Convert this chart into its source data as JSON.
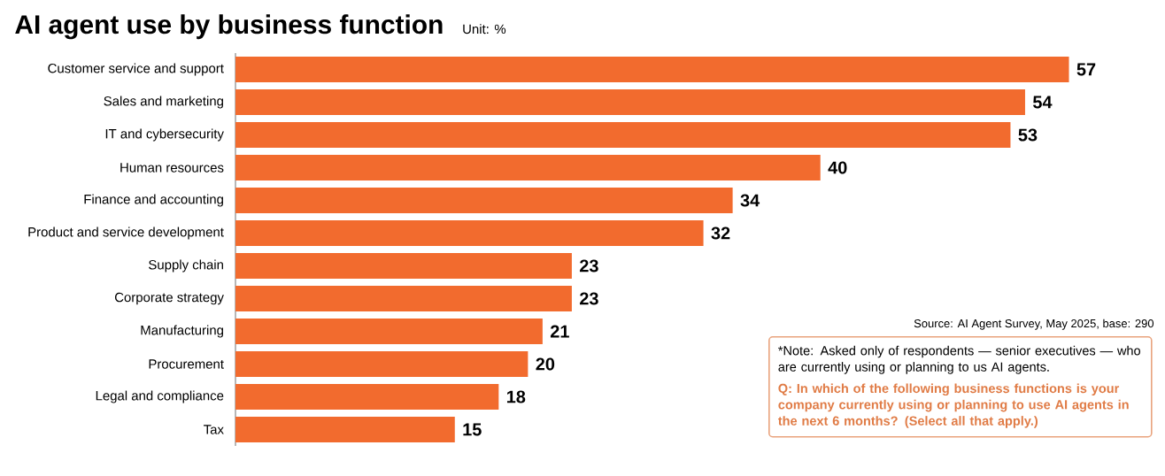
{
  "chart_data": {
    "type": "bar",
    "orientation": "horizontal",
    "title": "AI agent use by business function",
    "subtitle": "Unit: %",
    "categories": [
      "Customer service and support",
      "Sales and marketing",
      "IT and cybersecurity",
      "Human resources",
      "Finance and accounting",
      "Product and service development",
      "Supply chain",
      "Corporate strategy",
      "Manufacturing",
      "Procurement",
      "Legal and compliance",
      "Tax"
    ],
    "values": [
      57,
      54,
      53,
      40,
      34,
      32,
      23,
      23,
      21,
      20,
      18,
      15
    ],
    "color": "#f26b2e",
    "data_labels": true,
    "annotations": [
      "Source: AI Agent Survey, May 2025, base: 290",
      "*Note: Asked only of respondents — senior executives — who are currently using or planning to us AI agents.",
      "Q: In which of the following business functions is your company currently using or planning to use AI agents in the next 6 months? (Select all that apply.)"
    ]
  }
}
